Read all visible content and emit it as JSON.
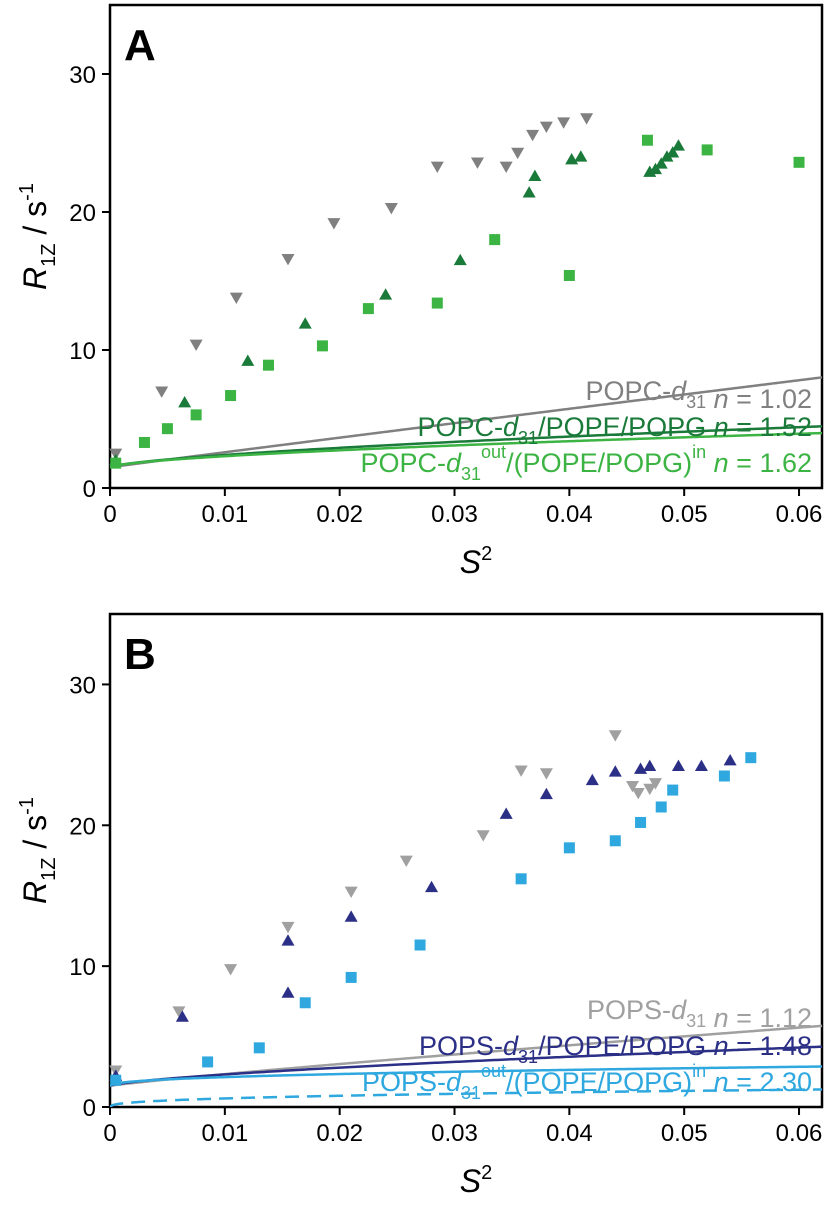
{
  "chart_data": [
    {
      "type": "scatter",
      "panel_label": "A",
      "xlabel": {
        "main": "S",
        "sup": "2"
      },
      "ylabel": {
        "main": "R",
        "sub": "1Z",
        "rest": " / s",
        "sup": "-1"
      },
      "xlim": [
        0,
        0.062
      ],
      "ylim": [
        0,
        35
      ],
      "xticks": [
        "0",
        "0.01",
        "0.02",
        "0.03",
        "0.04",
        "0.05",
        "0.06"
      ],
      "yticks": [
        "0",
        "10",
        "20",
        "30"
      ],
      "legend_position": "bottom-right",
      "series": [
        {
          "legend": {
            "pre": "POPC-",
            "it": "d",
            "sub": "31",
            "supa": "",
            "mid": "",
            "supb": "",
            "n_label": "n",
            "n_value": " = 1.02"
          },
          "color": "#808080",
          "marker": "triangle-down",
          "points": [
            [
              0.0005,
              2.5
            ],
            [
              0.0045,
              7.0
            ],
            [
              0.0075,
              10.4
            ],
            [
              0.011,
              13.8
            ],
            [
              0.0155,
              16.6
            ],
            [
              0.0195,
              19.2
            ],
            [
              0.0245,
              20.3
            ],
            [
              0.0285,
              23.3
            ],
            [
              0.032,
              23.6
            ],
            [
              0.0345,
              23.3
            ],
            [
              0.0355,
              24.3
            ],
            [
              0.0368,
              25.6
            ],
            [
              0.038,
              26.2
            ],
            [
              0.0395,
              26.5
            ],
            [
              0.0415,
              26.8
            ]
          ],
          "fit": {
            "a": 1.5,
            "b": 1.0,
            "c": 99.5,
            "n": 1.02,
            "dashed": false
          }
        },
        {
          "legend": {
            "pre": "POPC-",
            "it": "d",
            "sub": "31",
            "supa": "",
            "mid": "/POPE/POPG",
            "supb": "",
            "n_label": "n",
            "n_value": " = 1.52"
          },
          "color": "#1a7a3a",
          "marker": "triangle-up",
          "points": [
            [
              0.0005,
              2.0
            ],
            [
              0.0065,
              6.2
            ],
            [
              0.012,
              9.2
            ],
            [
              0.017,
              11.9
            ],
            [
              0.024,
              14.0
            ],
            [
              0.0305,
              16.5
            ],
            [
              0.0365,
              21.4
            ],
            [
              0.037,
              22.6
            ],
            [
              0.0402,
              23.8
            ],
            [
              0.041,
              24.0
            ],
            [
              0.047,
              22.9
            ],
            [
              0.0475,
              23.1
            ],
            [
              0.048,
              23.5
            ],
            [
              0.0485,
              24.0
            ],
            [
              0.049,
              24.3
            ],
            [
              0.0495,
              24.8
            ]
          ],
          "fit": {
            "a": 1.5,
            "b": 1.0,
            "c": 18.5,
            "n": 1.52,
            "dashed": false
          }
        },
        {
          "legend": {
            "pre": "POPC-",
            "it": "d",
            "sub": "31",
            "supa": "out",
            "mid": "/(POPE/POPG)",
            "supb": "in",
            "n_label": "n",
            "n_value": " = 1.62"
          },
          "color": "#3cb443",
          "marker": "square",
          "points": [
            [
              0.0005,
              1.8
            ],
            [
              0.003,
              3.3
            ],
            [
              0.005,
              4.3
            ],
            [
              0.0075,
              5.3
            ],
            [
              0.0105,
              6.7
            ],
            [
              0.0138,
              8.9
            ],
            [
              0.0185,
              10.3
            ],
            [
              0.0225,
              13.0
            ],
            [
              0.0285,
              13.4
            ],
            [
              0.0335,
              18.0
            ],
            [
              0.04,
              15.4
            ],
            [
              0.0468,
              25.2
            ],
            [
              0.052,
              24.5
            ],
            [
              0.06,
              23.6
            ]
          ],
          "fit": {
            "a": 1.5,
            "b": 1.0,
            "c": 13.8,
            "n": 1.62,
            "dashed": false
          }
        }
      ]
    },
    {
      "type": "scatter",
      "panel_label": "B",
      "xlabel": {
        "main": "S",
        "sup": "2"
      },
      "ylabel": {
        "main": "R",
        "sub": "1Z",
        "rest": " / s",
        "sup": "-1"
      },
      "xlim": [
        0,
        0.062
      ],
      "ylim": [
        0,
        35
      ],
      "xticks": [
        "0",
        "0.01",
        "0.02",
        "0.03",
        "0.04",
        "0.05",
        "0.06"
      ],
      "yticks": [
        "0",
        "10",
        "20",
        "30"
      ],
      "legend_position": "bottom-right",
      "series": [
        {
          "legend": {
            "pre": "POPS-",
            "it": "d",
            "sub": "31",
            "supa": "",
            "mid": "",
            "supb": "",
            "n_label": "n",
            "n_value": " = 1.12"
          },
          "color": "#a0a0a0",
          "marker": "triangle-down",
          "points": [
            [
              0.0005,
              2.6
            ],
            [
              0.006,
              6.8
            ],
            [
              0.0105,
              9.8
            ],
            [
              0.0155,
              12.8
            ],
            [
              0.021,
              15.3
            ],
            [
              0.0258,
              17.5
            ],
            [
              0.0325,
              19.3
            ],
            [
              0.0358,
              23.9
            ],
            [
              0.038,
              23.7
            ],
            [
              0.044,
              26.4
            ],
            [
              0.0455,
              22.8
            ],
            [
              0.046,
              22.3
            ],
            [
              0.047,
              22.6
            ],
            [
              0.0475,
              23.0
            ]
          ],
          "fit": {
            "a": 1.5,
            "b": 1.0,
            "c": 51.0,
            "n": 1.12,
            "dashed": false
          }
        },
        {
          "legend": {
            "pre": "POPS-",
            "it": "d",
            "sub": "31",
            "supa": "",
            "mid": "/POPE/POPG",
            "supb": "",
            "n_label": "n",
            "n_value": " = 1.48"
          },
          "color": "#2b2f86",
          "marker": "triangle-up",
          "points": [
            [
              0.0005,
              2.2
            ],
            [
              0.0063,
              6.4
            ],
            [
              0.0155,
              11.8
            ],
            [
              0.0155,
              8.1
            ],
            [
              0.021,
              13.5
            ],
            [
              0.028,
              15.6
            ],
            [
              0.0345,
              20.8
            ],
            [
              0.038,
              22.2
            ],
            [
              0.042,
              23.2
            ],
            [
              0.044,
              23.8
            ],
            [
              0.0462,
              24.0
            ],
            [
              0.047,
              24.2
            ],
            [
              0.0495,
              24.2
            ],
            [
              0.0515,
              24.2
            ],
            [
              0.054,
              24.6
            ]
          ],
          "fit": {
            "a": 1.5,
            "b": 1.0,
            "c": 18.2,
            "n": 1.48,
            "dashed": false
          }
        },
        {
          "legend": {
            "pre": "POPS-",
            "it": "d",
            "sub": "31",
            "supa": "out",
            "mid": "/(POPE/POPG)",
            "supb": "in",
            "n_label": "n",
            "n_value": " = 2.30"
          },
          "color": "#2ea8df",
          "marker": "square",
          "points": [
            [
              0.0005,
              1.9
            ],
            [
              0.0085,
              3.2
            ],
            [
              0.013,
              4.2
            ],
            [
              0.017,
              7.4
            ],
            [
              0.021,
              9.2
            ],
            [
              0.027,
              11.5
            ],
            [
              0.0358,
              16.2
            ],
            [
              0.04,
              18.4
            ],
            [
              0.044,
              18.9
            ],
            [
              0.0462,
              20.2
            ],
            [
              0.048,
              21.3
            ],
            [
              0.049,
              22.5
            ],
            [
              0.0535,
              23.5
            ],
            [
              0.0558,
              24.8
            ]
          ],
          "fit": {
            "a": 1.5,
            "b": 1.0,
            "c": 4.6,
            "n": 2.3,
            "dashed": false
          },
          "dashed_fit": {
            "a": 0.0,
            "b": 1.0,
            "c": 3.7,
            "n": 2.55,
            "dashed": true
          }
        }
      ]
    }
  ]
}
